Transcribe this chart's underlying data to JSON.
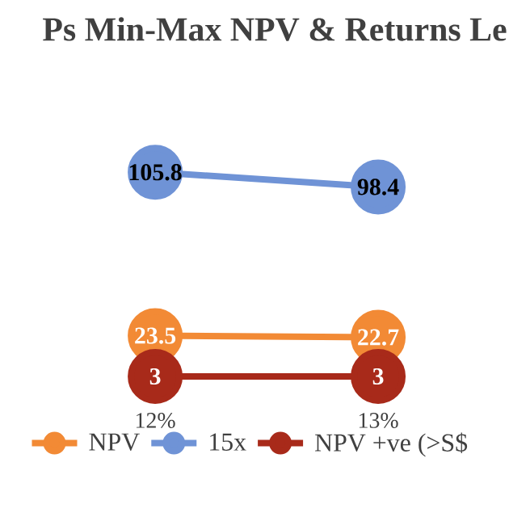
{
  "chart_data": {
    "type": "line",
    "title": "Ps Min-Max NPV & Returns Le",
    "categories": [
      null,
      "12%",
      "13%",
      null
    ],
    "series": [
      {
        "name": "NPV",
        "color": "#f28a35",
        "values": [
          null,
          23.5,
          22.7,
          null
        ]
      },
      {
        "name": "15x",
        "color": "#6f93d6",
        "values": [
          null,
          105.8,
          98.4,
          null
        ]
      },
      {
        "name": "NPV +ve (>S$",
        "color": "#a82a1a",
        "values": [
          null,
          3,
          3,
          null
        ]
      }
    ],
    "data_labels": true,
    "tick_labels": "x",
    "legend": "bottom",
    "marker": "circle",
    "line_style": "solid"
  }
}
